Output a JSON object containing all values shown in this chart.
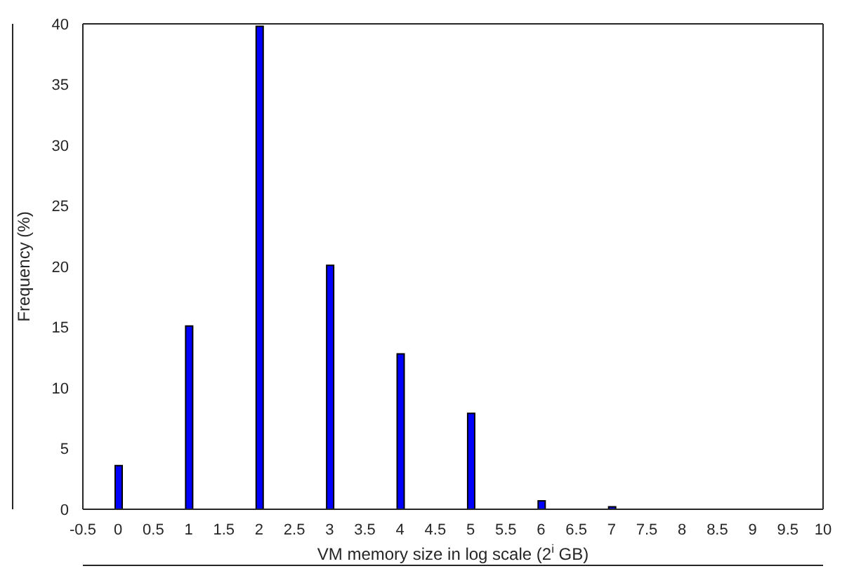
{
  "chart_data": {
    "type": "bar",
    "xlabel": "VM memory size in log scale (2$^{i}$ GB)",
    "ylabel": "Frequency (%)",
    "x": [
      0,
      1,
      2,
      3,
      4,
      5,
      6,
      7
    ],
    "values": [
      3.6,
      15.1,
      39.8,
      20.1,
      12.8,
      7.9,
      0.7,
      0.2
    ],
    "color": "#0000ff",
    "xlim": [
      -0.5,
      10
    ],
    "xticks": [
      -0.5,
      0,
      0.5,
      1,
      1.5,
      2,
      2.5,
      3,
      3.5,
      4,
      4.5,
      5,
      5.5,
      6,
      6.5,
      7,
      7.5,
      8,
      8.5,
      9,
      9.5,
      10
    ],
    "ylim": [
      0,
      40
    ],
    "yticks": [
      0,
      5,
      10,
      15,
      20,
      25,
      30,
      35,
      40
    ]
  }
}
